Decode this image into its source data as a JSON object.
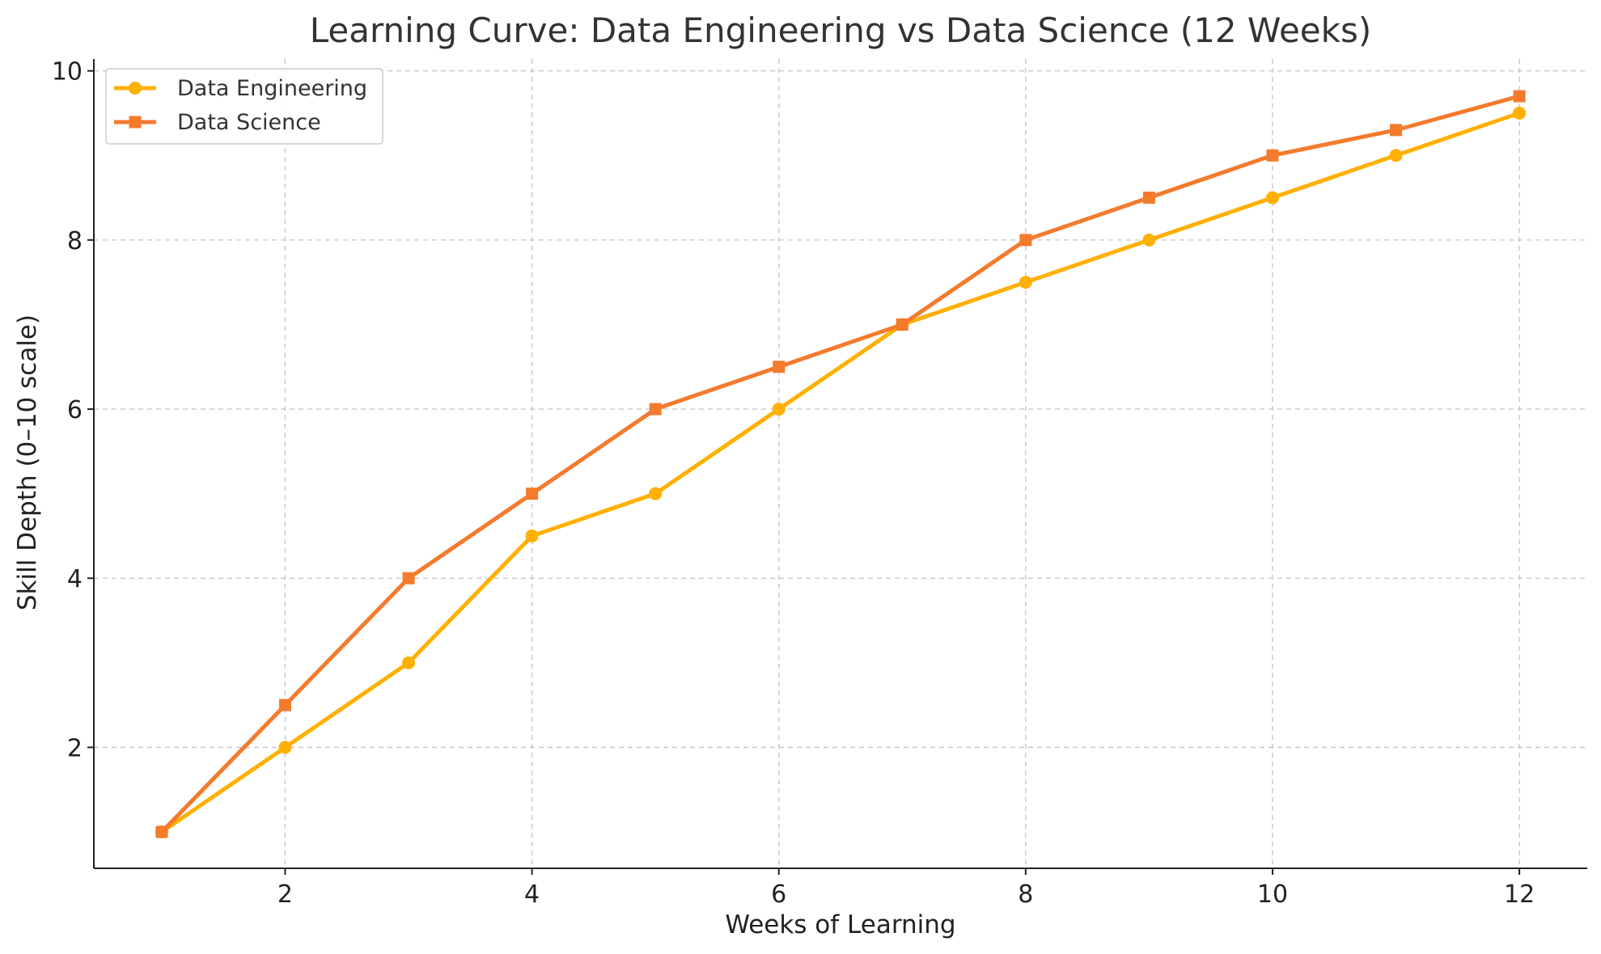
{
  "chart_data": {
    "type": "line",
    "title": "Learning Curve: Data Engineering vs Data Science (12 Weeks)",
    "xlabel": "Weeks of Learning",
    "ylabel": "Skill Depth (0–10 scale)",
    "x": [
      1,
      2,
      3,
      4,
      5,
      6,
      7,
      8,
      9,
      10,
      11,
      12
    ],
    "xlim": [
      0.45,
      12.55
    ],
    "ylim": [
      0.57,
      10.14
    ],
    "xticks": [
      2,
      4,
      6,
      8,
      10,
      12
    ],
    "yticks": [
      2,
      4,
      6,
      8,
      10
    ],
    "grid": true,
    "legend_position": "top-left",
    "series": [
      {
        "name": "Data Engineering",
        "color": "#ffb000",
        "marker": "circle",
        "values": [
          1,
          2,
          3,
          4.5,
          5,
          6,
          7,
          7.5,
          8,
          8.5,
          9,
          9.5
        ]
      },
      {
        "name": "Data Science",
        "color": "#f47a2d",
        "marker": "square",
        "values": [
          1,
          2.5,
          4,
          5,
          6,
          6.5,
          7,
          8,
          8.5,
          9,
          9.3,
          9.7
        ]
      }
    ]
  }
}
